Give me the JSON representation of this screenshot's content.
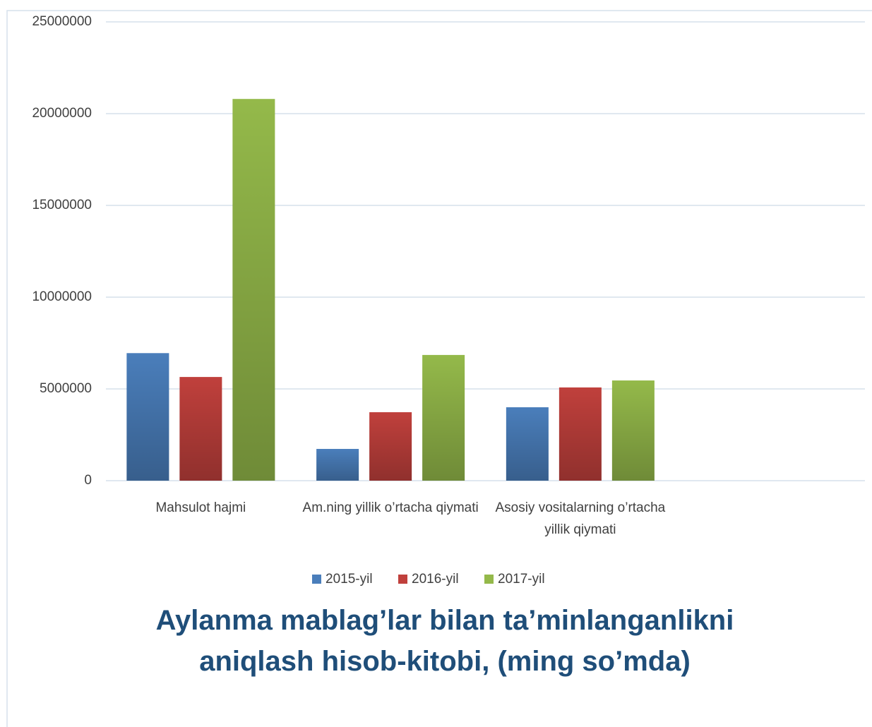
{
  "chart_data": {
    "type": "bar",
    "title": "Aylanma mablag’lar bilan ta’minlanganlikni aniqlash hisob-kitobi, (ming so’mda)",
    "categories": [
      "Mahsulot hajmi",
      "Am.ning yillik o’rtacha qiymati",
      "Asosiy vositalarning o’rtacha yillik qiymati",
      null
    ],
    "series": [
      {
        "name": "2015-yil",
        "color": "#4a7ebb",
        "values": [
          6950000,
          1730000,
          4000000,
          null
        ]
      },
      {
        "name": "2016-yil",
        "color": "#c0403c",
        "values": [
          5650000,
          3730000,
          5080000,
          null
        ]
      },
      {
        "name": "2017-yil",
        "color": "#94b94a",
        "values": [
          20800000,
          6850000,
          5460000,
          null
        ]
      }
    ],
    "ylim": [
      0,
      25000000
    ],
    "yticks": [
      0,
      5000000,
      10000000,
      15000000,
      20000000,
      25000000
    ],
    "grid": true,
    "legend": "bottom"
  }
}
